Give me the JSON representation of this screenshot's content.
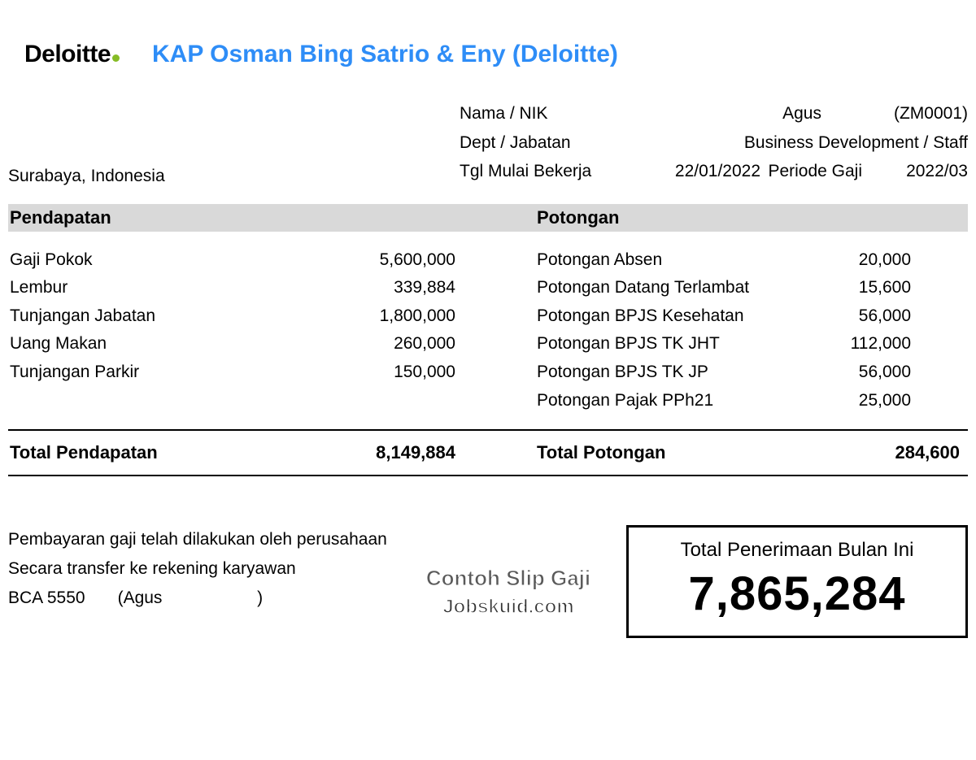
{
  "logo": {
    "text": "Deloitte",
    "dot_color": "#86bc25"
  },
  "company_title": "KAP Osman Bing Satrio & Eny (Deloitte)",
  "location": "Surabaya, Indonesia",
  "employee": {
    "name_label": "Nama / NIK",
    "name": "Agus",
    "nik": "(ZM0001)",
    "dept_label": "Dept / Jabatan",
    "dept": "Business Development / Staff",
    "start_label": "Tgl Mulai Bekerja",
    "start_date": "22/01/2022",
    "period_label": "Periode Gaji",
    "period": "2022/03"
  },
  "sections": {
    "income_header": "Pendapatan",
    "deduction_header": "Potongan"
  },
  "income": [
    {
      "label": "Gaji Pokok",
      "amount": "5,600,000"
    },
    {
      "label": "Lembur",
      "amount": "339,884"
    },
    {
      "label": "Tunjangan Jabatan",
      "amount": "1,800,000"
    },
    {
      "label": "Uang Makan",
      "amount": "260,000"
    },
    {
      "label": "Tunjangan Parkir",
      "amount": "150,000"
    }
  ],
  "deductions": [
    {
      "label": "Potongan Absen",
      "amount": "20,000"
    },
    {
      "label": "Potongan Datang Terlambat",
      "amount": "15,600"
    },
    {
      "label": "Potongan BPJS Kesehatan",
      "amount": "56,000"
    },
    {
      "label": "Potongan BPJS TK JHT",
      "amount": "112,000"
    },
    {
      "label": "Potongan BPJS TK JP",
      "amount": "56,000"
    },
    {
      "label": "Potongan Pajak PPh21",
      "amount": "25,000"
    }
  ],
  "totals": {
    "income_label": "Total Pendapatan",
    "income_amount": "8,149,884",
    "deduction_label": "Total Potongan",
    "deduction_amount": "284,600"
  },
  "payment_note": {
    "line1": "Pembayaran gaji telah dilakukan oleh perusahaan",
    "line2": "Secara transfer ke rekening karyawan",
    "bank": "BCA 5550",
    "holder": "(Agus                    )"
  },
  "watermark": {
    "line1": "Contoh Slip Gaji",
    "line2": "Jobskuid.com"
  },
  "net": {
    "label": "Total Penerimaan Bulan Ini",
    "amount": "7,865,284"
  },
  "style": {
    "title_color": "#2e8df7",
    "header_bg": "#d9d9d9",
    "text_color": "#000000",
    "body_fontsize": 21,
    "title_fontsize": 30,
    "net_fontsize": 58
  }
}
